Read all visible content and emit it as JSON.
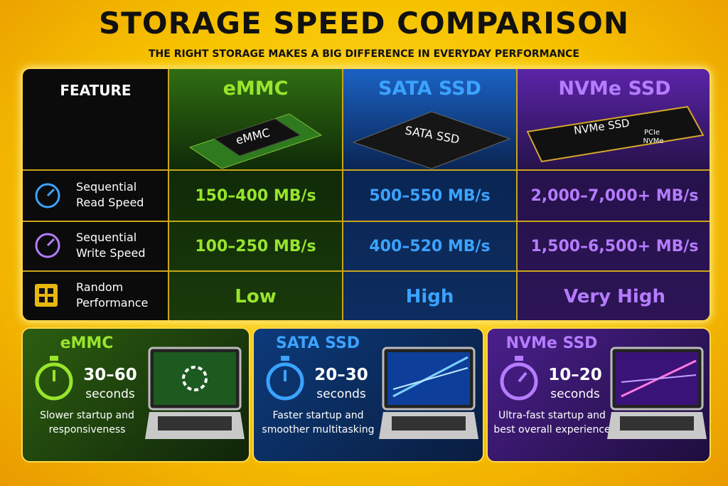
{
  "header": {
    "title": "STORAGE SPEED COMPARISON",
    "subtitle": "THE RIGHT STORAGE MAKES A BIG DIFFERENCE IN EVERYDAY PERFORMANCE"
  },
  "table": {
    "columns": [
      "FEATURE",
      "eMMC",
      "SATA SSD",
      "NVMe SSD"
    ],
    "chip_labels": [
      "eMMC",
      "SATA SSD",
      "NVMe SSD"
    ],
    "nvme_chip_sublabel": [
      "PCIe",
      "NVMe"
    ],
    "rows": [
      {
        "label": "Sequential Read Speed",
        "values": [
          "150–400 MB/s",
          "500–550 MB/s",
          "2,000–7,000+ MB/s"
        ]
      },
      {
        "label": "Sequential Write Speed",
        "values": [
          "100–250 MB/s",
          "400–520 MB/s",
          "1,500–6,500+ MB/s"
        ]
      },
      {
        "label": "Random Performance",
        "values": [
          "Low",
          "High",
          "Very High"
        ]
      }
    ]
  },
  "boot_cards": [
    {
      "name": "eMMC",
      "time": "30–60",
      "unit": "seconds",
      "description": "Slower startup and responsiveness"
    },
    {
      "name": "SATA SSD",
      "time": "20–30",
      "unit": "seconds",
      "description": "Faster startup and smoother multitasking"
    },
    {
      "name": "NVMe SSD",
      "time": "10–20",
      "unit": "seconds",
      "description": "Ultra-fast startup and best overall experience"
    }
  ]
}
